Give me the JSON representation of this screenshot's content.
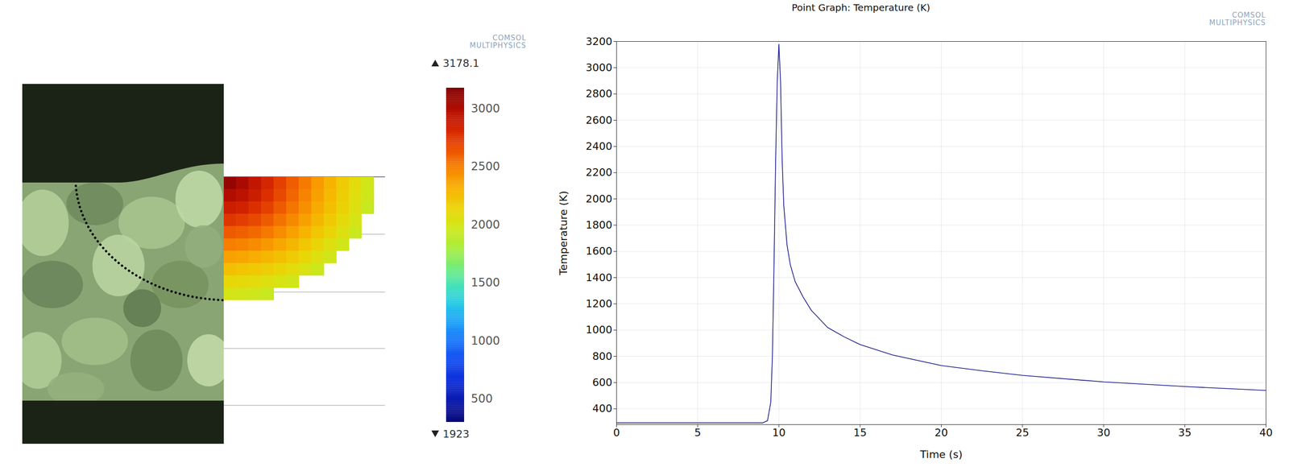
{
  "chart_data": [
    {
      "type": "heatmap",
      "tick_labels": false,
      "watermark": "COMSOL MULTIPHYSICS",
      "cells": [
        [
          3100,
          3010,
          2910,
          2810,
          2700,
          2600,
          2500,
          2390,
          2290,
          2180,
          2080,
          1970
        ],
        [
          2980,
          2930,
          2860,
          2770,
          2670,
          2570,
          2470,
          2370,
          2270,
          2170,
          2060,
          1960
        ],
        [
          2860,
          2830,
          2770,
          2700,
          2610,
          2520,
          2430,
          2330,
          2240,
          2140,
          2040,
          1930
        ],
        [
          2740,
          2710,
          2670,
          2610,
          2530,
          2450,
          2370,
          2280,
          2190,
          2090,
          2000,
          null
        ],
        [
          2610,
          2590,
          2560,
          2510,
          2440,
          2370,
          2290,
          2210,
          2130,
          2040,
          1940,
          null
        ],
        [
          2490,
          2470,
          2440,
          2400,
          2340,
          2280,
          2210,
          2130,
          2050,
          1970,
          null,
          null
        ],
        [
          2360,
          2350,
          2320,
          2280,
          2240,
          2180,
          2120,
          2050,
          1970,
          null,
          null,
          null
        ],
        [
          2240,
          2220,
          2200,
          2170,
          2130,
          2080,
          2020,
          1950,
          null,
          null,
          null,
          null
        ],
        [
          2110,
          2100,
          2080,
          2050,
          2010,
          1970,
          null,
          null,
          null,
          null,
          null,
          null
        ],
        [
          1990,
          1980,
          1960,
          1930,
          null,
          null,
          null,
          null,
          null,
          null,
          null,
          null
        ]
      ],
      "colorbar": {
        "range": [
          300,
          3178.1
        ],
        "ticks": [
          500,
          1000,
          1500,
          2000,
          2500,
          3000
        ],
        "max": 3178.1,
        "min": 1923
      }
    },
    {
      "type": "line",
      "title": "Point Graph: Temperature (K)",
      "watermark": "COMSOL MULTIPHYSICS",
      "x_label": "Time (s)",
      "y_label": "Temperature (K)",
      "x": [
        0,
        5,
        9,
        9.3,
        9.5,
        9.6,
        9.7,
        9.8,
        9.9,
        10,
        10.1,
        10.2,
        10.3,
        10.5,
        10.7,
        11,
        11.5,
        12,
        13,
        14,
        15,
        17,
        20,
        22.5,
        25,
        30,
        35,
        40
      ],
      "values": [
        293,
        293,
        293,
        310,
        450,
        800,
        1500,
        2300,
        2900,
        3178,
        2900,
        2300,
        1950,
        1650,
        1500,
        1370,
        1250,
        1150,
        1020,
        950,
        890,
        810,
        730,
        690,
        655,
        605,
        570,
        540
      ],
      "color": "#1c1c8a",
      "xlim": [
        0,
        40
      ],
      "ylim": [
        280,
        3200
      ],
      "xticks": [
        0,
        5,
        10,
        15,
        20,
        25,
        30,
        35,
        40
      ],
      "yticks": [
        400,
        600,
        800,
        1000,
        1200,
        1400,
        1600,
        1800,
        2000,
        2200,
        2400,
        2600,
        2800,
        3000,
        3200
      ],
      "grid": true
    }
  ]
}
